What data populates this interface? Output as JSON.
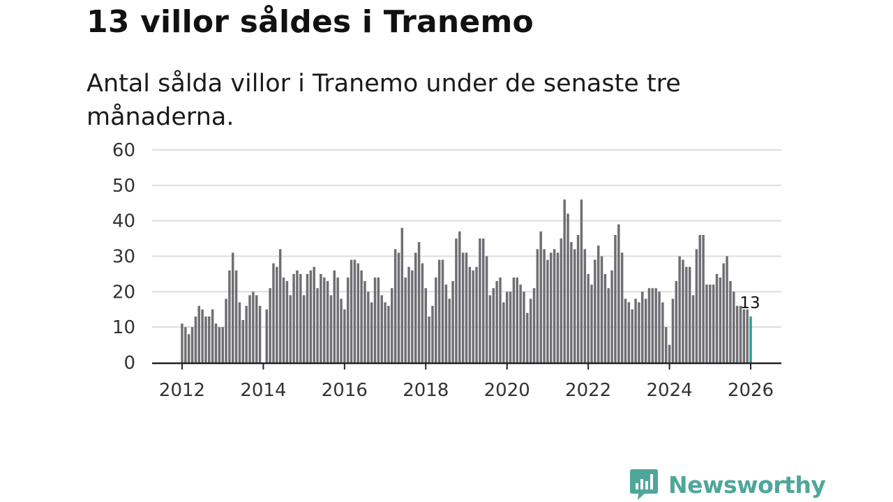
{
  "header": {
    "title": "13 villor såldes i Tranemo",
    "subtitle": "Antal sålda villor i Tranemo under de senaste tre månaderna."
  },
  "logo": {
    "name": "Newsworthy",
    "icon": "bar-chart-badge-icon"
  },
  "colors": {
    "bar": "#6f6e73",
    "highlight": "#2a9d8f",
    "grid": "#dddddd",
    "axis": "#222222",
    "logo": "#4fa69a"
  },
  "chart_data": {
    "type": "bar",
    "title": "13 villor såldes i Tranemo",
    "xlabel": "",
    "ylabel": "",
    "ylim": [
      0,
      60
    ],
    "yticks": [
      "0",
      "10",
      "20",
      "30",
      "40",
      "50",
      "60"
    ],
    "xticks": [
      "2012",
      "2014",
      "2016",
      "2018",
      "2020",
      "2022",
      "2024",
      "2026"
    ],
    "xrange": [
      2012.0,
      2026.0
    ],
    "grid": true,
    "start": "2012-01",
    "highlight_label": "13",
    "values": [
      11,
      10,
      8,
      10,
      13,
      16,
      15,
      13,
      13,
      15,
      11,
      10,
      10,
      18,
      26,
      31,
      26,
      17,
      12,
      16,
      19,
      20,
      19,
      16,
      0,
      15,
      21,
      28,
      27,
      32,
      24,
      23,
      19,
      25,
      26,
      25,
      19,
      25,
      26,
      27,
      21,
      25,
      24,
      23,
      19,
      26,
      24,
      18,
      15,
      24,
      29,
      29,
      28,
      26,
      23,
      20,
      17,
      24,
      24,
      19,
      17,
      16,
      21,
      32,
      31,
      38,
      24,
      27,
      26,
      31,
      34,
      28,
      21,
      13,
      16,
      24,
      29,
      29,
      22,
      18,
      23,
      35,
      37,
      31,
      31,
      27,
      26,
      27,
      35,
      35,
      30,
      19,
      21,
      23,
      24,
      17,
      20,
      20,
      24,
      24,
      22,
      20,
      14,
      18,
      21,
      32,
      37,
      32,
      29,
      31,
      32,
      31,
      35,
      46,
      42,
      34,
      32,
      36,
      46,
      32,
      25,
      22,
      29,
      33,
      30,
      25,
      21,
      26,
      36,
      39,
      31,
      18,
      17,
      15,
      18,
      17,
      20,
      18,
      21,
      21,
      21,
      20,
      17,
      10,
      5,
      18,
      23,
      30,
      29,
      27,
      27,
      19,
      32,
      36,
      36,
      22,
      22,
      22,
      25,
      24,
      28,
      30,
      23,
      20,
      16,
      16,
      15,
      15,
      13
    ]
  }
}
